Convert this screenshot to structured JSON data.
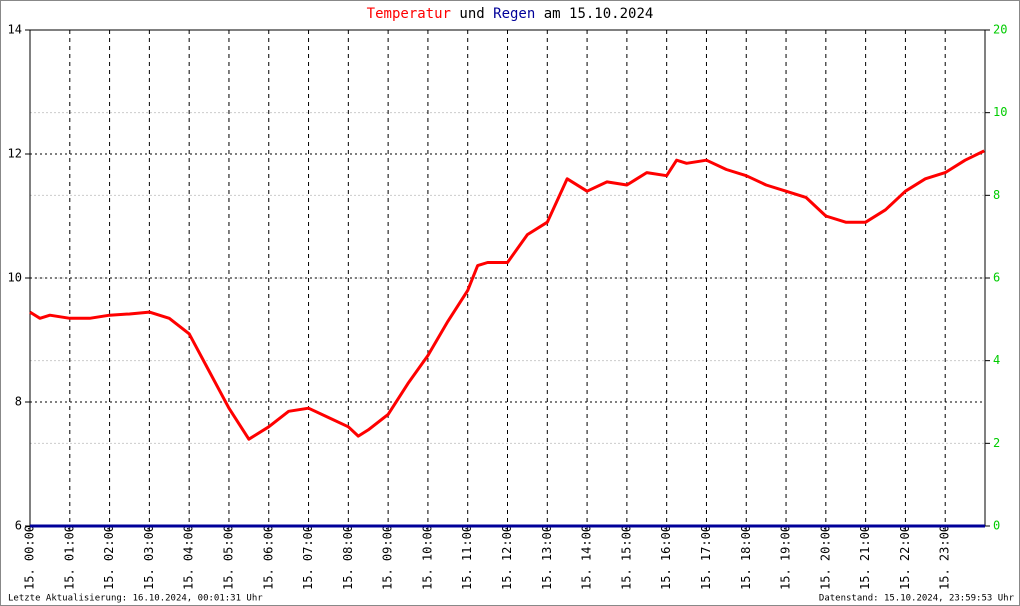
{
  "chart_data": {
    "type": "line",
    "title_link": "und",
    "title_date": "am 15.10.2024",
    "xlim": [
      0,
      24
    ],
    "xticks": [
      {
        "value": 0,
        "label": "15. 00:00"
      },
      {
        "value": 1,
        "label": "15. 01:00"
      },
      {
        "value": 2,
        "label": "15. 02:00"
      },
      {
        "value": 3,
        "label": "15. 03:00"
      },
      {
        "value": 4,
        "label": "15. 04:00"
      },
      {
        "value": 5,
        "label": "15. 05:00"
      },
      {
        "value": 6,
        "label": "15. 06:00"
      },
      {
        "value": 7,
        "label": "15. 07:00"
      },
      {
        "value": 8,
        "label": "15. 08:00"
      },
      {
        "value": 9,
        "label": "15. 09:00"
      },
      {
        "value": 10,
        "label": "15. 10:00"
      },
      {
        "value": 11,
        "label": "15. 11:00"
      },
      {
        "value": 12,
        "label": "15. 12:00"
      },
      {
        "value": 13,
        "label": "15. 13:00"
      },
      {
        "value": 14,
        "label": "15. 14:00"
      },
      {
        "value": 15,
        "label": "15. 15:00"
      },
      {
        "value": 16,
        "label": "15. 16:00"
      },
      {
        "value": 17,
        "label": "15. 17:00"
      },
      {
        "value": 18,
        "label": "15. 18:00"
      },
      {
        "value": 19,
        "label": "15. 19:00"
      },
      {
        "value": 20,
        "label": "15. 20:00"
      },
      {
        "value": 21,
        "label": "15. 21:00"
      },
      {
        "value": 22,
        "label": "15. 22:00"
      },
      {
        "value": 23,
        "label": "15. 23:00"
      }
    ],
    "ylim": [
      6,
      14
    ],
    "yticks": [
      6,
      8,
      10,
      12,
      14
    ],
    "y2lim": [
      0,
      20
    ],
    "y2ticks": [
      0,
      2,
      4,
      6,
      8,
      10,
      20
    ],
    "y2_tick_spacing": "even",
    "y2_color": "#00cc00",
    "grid": true,
    "series": [
      {
        "name": "Temperatur",
        "color": "#ff0000",
        "x": [
          0,
          0.25,
          0.5,
          1,
          1.5,
          2,
          2.5,
          3,
          3.5,
          4,
          4.5,
          5,
          5.5,
          6,
          6.5,
          7,
          7.5,
          8,
          8.25,
          8.5,
          9,
          9.5,
          10,
          10.5,
          11,
          11.25,
          11.5,
          12,
          12.5,
          13,
          13.5,
          14,
          14.5,
          15,
          15.5,
          16,
          16.25,
          16.5,
          17,
          17.5,
          18,
          18.5,
          19,
          19.5,
          20,
          20.5,
          21,
          21.5,
          22,
          22.5,
          23,
          23.5,
          23.98
        ],
        "values": [
          9.45,
          9.35,
          9.4,
          9.35,
          9.35,
          9.4,
          9.42,
          9.45,
          9.35,
          9.1,
          8.5,
          7.9,
          7.4,
          7.6,
          7.85,
          7.9,
          7.75,
          7.6,
          7.45,
          7.55,
          7.8,
          8.3,
          8.75,
          9.3,
          9.8,
          10.2,
          10.25,
          10.25,
          10.7,
          10.9,
          11.6,
          11.4,
          11.55,
          11.5,
          11.7,
          11.65,
          11.9,
          11.85,
          11.9,
          11.75,
          11.65,
          11.5,
          11.4,
          11.3,
          11.0,
          10.9,
          10.9,
          11.1,
          11.4,
          11.6,
          11.7,
          11.9,
          12.05
        ]
      },
      {
        "name": "Regen",
        "color": "#000099",
        "axis": "y2",
        "x": [
          0,
          24
        ],
        "values": [
          0,
          0
        ]
      }
    ],
    "footer_left": "Letzte Aktualisierung: 16.10.2024, 00:01:31 Uhr",
    "footer_right": "Datenstand: 15.10.2024, 23:59:53 Uhr"
  }
}
